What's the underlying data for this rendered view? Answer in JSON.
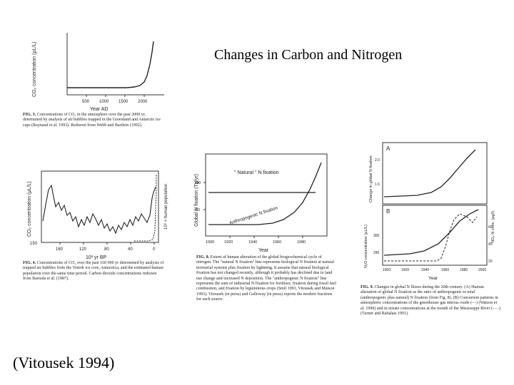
{
  "title": "Changes in Carbon and Nitrogen",
  "citation": "(Vitousek 1994)",
  "fig3": {
    "ylabel": "CO₂ concentration (μL/L)",
    "xticks": [
      "500",
      "1000",
      "1500",
      "2000"
    ],
    "xlabel": "Year AD",
    "caption_label": "FIG. 3.",
    "caption": "Concentrations of CO₂ in the atmosphere over the past 2000 yr, determined by analysis of air bubbles trapped in the Greenland and Antarctic ice caps (Raynaud et al. 1993). Redrawn from Webb and Bartlein (1992)."
  },
  "fig4": {
    "ylabel": "CO₂ concentration (μL/L)",
    "ylabel2": "10⁹ × human population",
    "yticks": [
      "150"
    ],
    "xticks": [
      "160",
      "120",
      "80",
      "40",
      "0"
    ],
    "xlabel": "10³ yr BP",
    "caption_label": "FIG. 4.",
    "caption": "Concentrations of CO₂ over the past 160 000 yr determined by analysis of trapped air bubbles from the Vostok ice core, Antarctica, and the estimated human population over the same time period. Carbon dioxide concentrations redrawn from Barnola et al. (1987)."
  },
  "fig8": {
    "ylabel": "Global N fixation (Tg/yr)",
    "yticks": [
      "100",
      "50"
    ],
    "xticks": [
      "1900",
      "1920",
      "1940",
      "1960",
      "1980"
    ],
    "xlabel": "Year",
    "natural_label": "\" Natural \" N fixation",
    "anthro_label": "Anthropogenic N fixation",
    "caption_label": "FIG. 8.",
    "caption": "Extent of human alteration of the global biogeochemical cycle of nitrogen. The \"natural N fixation\" line represents biological N fixation at natural terrestrial systems plus fixation by lightning. It assume that natural biological fixation has not changed recently, although it probably has declined due to land use change and increased N deposition. The \"anthropogenic N fixation\" line represents the sum of industrial N fixation for fertilizer, fixation during fossil fuel combustion, and fixation by leguminous crops (Smil 1991, Vitousek and Matson 1993). Vitousek (in press) and Galloway (in press) reports the modern fractions for each source."
  },
  "fig9": {
    "panel_a": "A",
    "panel_b": "B",
    "ylabel_a": "Change in global N fixation",
    "ylabel_b": "N₂O concentration (μL/L)",
    "ylabel_right": "NO₃-N conc. (μg/l)",
    "yticks_a": [
      "2.0",
      "1.6"
    ],
    "yticks_b": [
      "300",
      "290"
    ],
    "yticks_right": [
      "60",
      "40",
      "20"
    ],
    "xticks": [
      "1900",
      "1920",
      "1940",
      "1960",
      "1980",
      "2000"
    ],
    "xlabel": "Year",
    "caption_label": "FIG. 9.",
    "caption": "Changes in global N fluxes during the 20th century. (A) Human alteration of global N fixation as the ratio of anthropogenic to total (anthropogenic plus natural) N fixation (from Fig. 8). (B) Concurrent patterns in atmospheric concentrations of the greenhouse gas nitrous oxide (—) (Watson et al. 1990) and in nitrate concentrations at the mouth of the Mississippi River (- - -) (Turner and Rabalais 1991)."
  }
}
